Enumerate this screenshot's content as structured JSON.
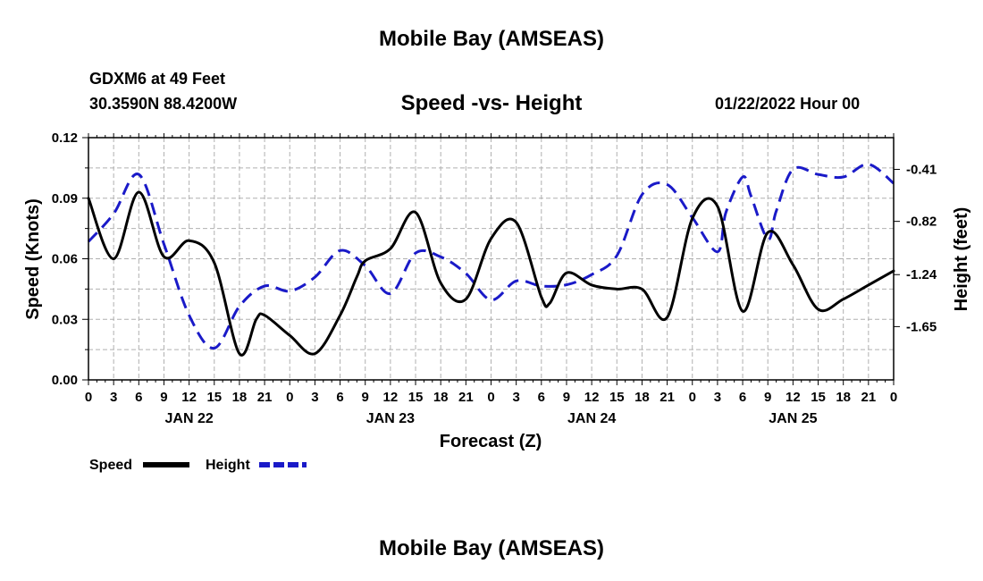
{
  "header": {
    "title": "Mobile Bay (AMSEAS)",
    "station": "GDXM6 at 49 Feet",
    "coords": "30.3590N  88.4200W",
    "chart_title": "Speed -vs- Height",
    "datetime": "01/22/2022 Hour 00"
  },
  "footer": {
    "title": "Mobile Bay (AMSEAS)"
  },
  "colors": {
    "speed": "#000000",
    "height": "#1a1ac8",
    "grid": "#b0b0b0"
  },
  "chart_data": {
    "type": "line",
    "title": "Speed -vs- Height",
    "xlabel": "Forecast (Z)",
    "ylabel": "Speed (Knots)",
    "y2label": "Height (feet)",
    "xlim": [
      0,
      96
    ],
    "ylim": [
      0,
      0.12
    ],
    "y2lim": [
      -2.07,
      -0.16
    ],
    "x_tick_labels": [
      "0",
      "3",
      "6",
      "9",
      "12",
      "15",
      "18",
      "21",
      "0",
      "3",
      "6",
      "9",
      "12",
      "15",
      "18",
      "21",
      "0",
      "3",
      "6",
      "9",
      "12",
      "15",
      "18",
      "21",
      "0",
      "3",
      "6",
      "9",
      "12",
      "15",
      "18",
      "21",
      "0"
    ],
    "y_ticks": [
      0.0,
      0.03,
      0.06,
      0.09,
      0.12
    ],
    "y_tick_labels": [
      "0.00",
      "0.03",
      "0.06",
      "0.09",
      "0.12"
    ],
    "y2_ticks": [
      -0.41,
      -0.82,
      -1.24,
      -1.65
    ],
    "y2_tick_labels": [
      "-0.41",
      "-0.82",
      "-1.24",
      "-1.65"
    ],
    "day_labels": [
      {
        "hour": 12,
        "label": "JAN 22"
      },
      {
        "hour": 36,
        "label": "JAN 23"
      },
      {
        "hour": 60,
        "label": "JAN 24"
      },
      {
        "hour": 84,
        "label": "JAN 25"
      }
    ],
    "series": [
      {
        "name": "Speed",
        "axis": "left",
        "style": "solid",
        "x": [
          0,
          3,
          6,
          9,
          12,
          15,
          18,
          20,
          21,
          24,
          27,
          30,
          32,
          33,
          36,
          39,
          42,
          45,
          48,
          51,
          54,
          55,
          57,
          60,
          63,
          66,
          69,
          72,
          75,
          78,
          81,
          84,
          87,
          90,
          93,
          96
        ],
        "values": [
          0.09,
          0.06,
          0.093,
          0.061,
          0.069,
          0.058,
          0.013,
          0.03,
          0.032,
          0.022,
          0.013,
          0.032,
          0.051,
          0.059,
          0.065,
          0.083,
          0.048,
          0.04,
          0.07,
          0.078,
          0.041,
          0.038,
          0.053,
          0.047,
          0.045,
          0.045,
          0.031,
          0.08,
          0.086,
          0.034,
          0.073,
          0.057,
          0.035,
          0.04,
          0.047,
          0.054
        ]
      },
      {
        "name": "Height",
        "axis": "right",
        "style": "dashed",
        "x": [
          0,
          3,
          6,
          9,
          12,
          15,
          18,
          21,
          24,
          27,
          30,
          33,
          36,
          39,
          42,
          45,
          48,
          51,
          54,
          57,
          60,
          63,
          66,
          69,
          72,
          75,
          76,
          78,
          79,
          81,
          82,
          84,
          87,
          90,
          93,
          96
        ],
        "values": [
          -0.98,
          -0.76,
          -0.45,
          -1.0,
          -1.56,
          -1.82,
          -1.49,
          -1.33,
          -1.37,
          -1.26,
          -1.05,
          -1.17,
          -1.39,
          -1.07,
          -1.1,
          -1.23,
          -1.44,
          -1.29,
          -1.33,
          -1.32,
          -1.24,
          -1.09,
          -0.61,
          -0.53,
          -0.79,
          -1.06,
          -0.75,
          -0.47,
          -0.62,
          -0.96,
          -0.74,
          -0.41,
          -0.45,
          -0.47,
          -0.37,
          -0.52
        ]
      }
    ],
    "legend": [
      {
        "label": "Speed",
        "series": "Speed"
      },
      {
        "label": "Height",
        "series": "Height"
      }
    ],
    "grid": true,
    "legend_position": "bottom-left"
  }
}
